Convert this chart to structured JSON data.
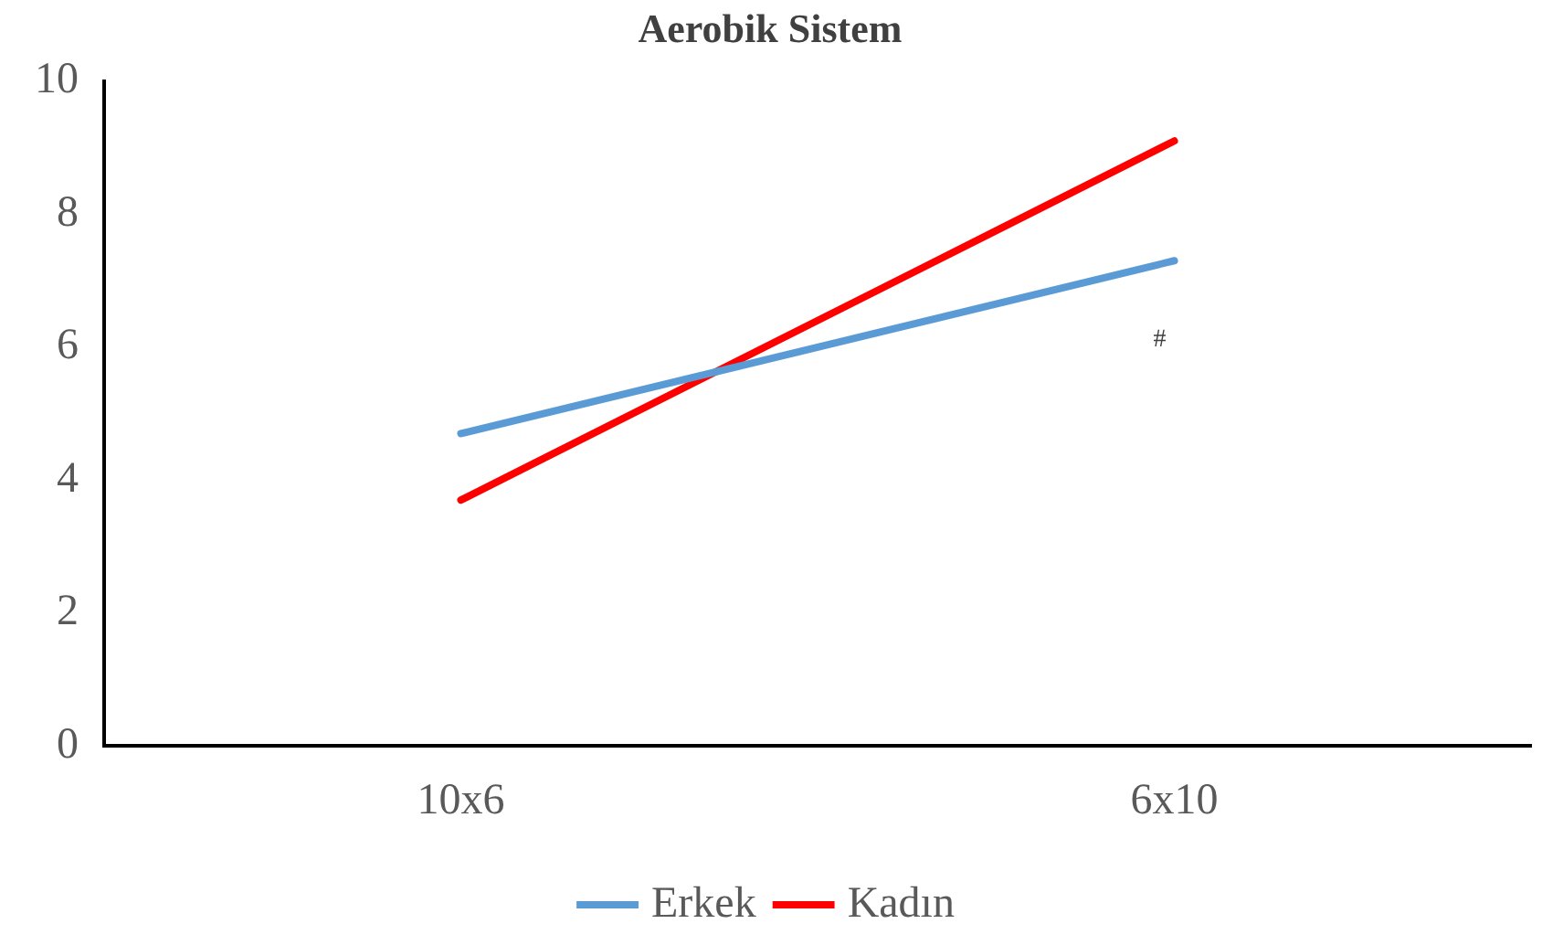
{
  "chart_data": {
    "type": "line",
    "title": "Aerobik Sistem",
    "categories": [
      "10x6",
      "6x10"
    ],
    "series": [
      {
        "name": "Erkek",
        "color": "#5b9bd5",
        "values": [
          4.7,
          7.3
        ]
      },
      {
        "name": "Kadın",
        "color": "#ff0000",
        "values": [
          3.7,
          9.1
        ]
      }
    ],
    "ylim": [
      0,
      10
    ],
    "yticks": [
      0,
      2,
      4,
      6,
      8,
      10
    ],
    "grid": false,
    "legend": "bottom",
    "marker": "none",
    "line_style": "solid",
    "annotations": [
      "#"
    ]
  }
}
